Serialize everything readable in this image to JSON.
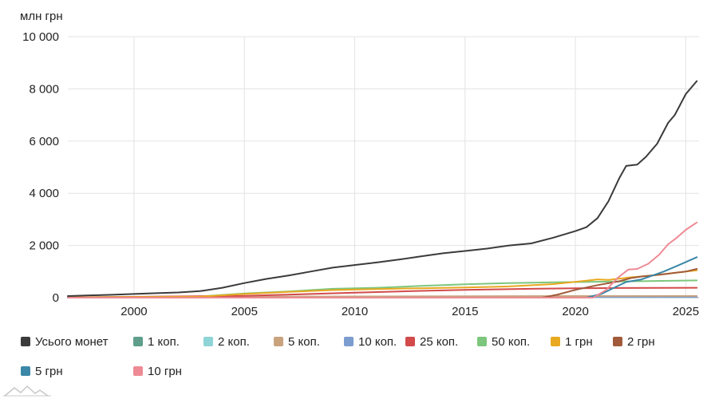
{
  "chart_data": {
    "type": "line",
    "unit_label": "млн грн",
    "xlim": [
      1997,
      2025.6
    ],
    "ylim": [
      0,
      10000
    ],
    "x_ticks": [
      2000,
      2005,
      2010,
      2015,
      2020,
      2025
    ],
    "y_ticks": [
      {
        "value": 0,
        "label": "0"
      },
      {
        "value": 2000,
        "label": "2 000"
      },
      {
        "value": 4000,
        "label": "4 000"
      },
      {
        "value": 6000,
        "label": "6 000"
      },
      {
        "value": 8000,
        "label": "8 000"
      },
      {
        "value": 10000,
        "label": "10 000"
      }
    ],
    "grid": true,
    "legend_position": "bottom",
    "series": [
      {
        "name": "Усього монет",
        "color": "#3b3b3b",
        "points": [
          [
            1997,
            60
          ],
          [
            1998,
            90
          ],
          [
            1999,
            110
          ],
          [
            2000,
            140
          ],
          [
            2001,
            170
          ],
          [
            2002,
            200
          ],
          [
            2003,
            250
          ],
          [
            2004,
            380
          ],
          [
            2005,
            560
          ],
          [
            2006,
            720
          ],
          [
            2007,
            850
          ],
          [
            2008,
            1000
          ],
          [
            2009,
            1150
          ],
          [
            2010,
            1250
          ],
          [
            2011,
            1350
          ],
          [
            2012,
            1460
          ],
          [
            2013,
            1580
          ],
          [
            2014,
            1700
          ],
          [
            2015,
            1790
          ],
          [
            2016,
            1880
          ],
          [
            2017,
            2000
          ],
          [
            2018,
            2080
          ],
          [
            2019,
            2300
          ],
          [
            2020,
            2550
          ],
          [
            2020.5,
            2700
          ],
          [
            2021,
            3050
          ],
          [
            2021.5,
            3700
          ],
          [
            2022,
            4600
          ],
          [
            2022.3,
            5050
          ],
          [
            2022.8,
            5100
          ],
          [
            2023.2,
            5400
          ],
          [
            2023.7,
            5900
          ],
          [
            2024.2,
            6700
          ],
          [
            2024.5,
            7000
          ],
          [
            2025,
            7800
          ],
          [
            2025.5,
            8300
          ]
        ]
      },
      {
        "name": "1 коп.",
        "color": "#5e9e8a",
        "points": [
          [
            1997,
            5
          ],
          [
            2005,
            15
          ],
          [
            2010,
            20
          ],
          [
            2015,
            25
          ],
          [
            2020,
            28
          ],
          [
            2025.5,
            28
          ]
        ]
      },
      {
        "name": "2 коп.",
        "color": "#8fd4d6",
        "points": [
          [
            1997,
            3
          ],
          [
            2005,
            10
          ],
          [
            2010,
            15
          ],
          [
            2015,
            18
          ],
          [
            2020,
            20
          ],
          [
            2025.5,
            20
          ]
        ]
      },
      {
        "name": "5 коп.",
        "color": "#c9a37e",
        "points": [
          [
            1997,
            8
          ],
          [
            2002,
            25
          ],
          [
            2005,
            35
          ],
          [
            2010,
            45
          ],
          [
            2015,
            55
          ],
          [
            2020,
            62
          ],
          [
            2025.5,
            65
          ]
        ]
      },
      {
        "name": "10 коп.",
        "color": "#7b9ccf",
        "points": [
          [
            1997,
            4
          ],
          [
            2005,
            12
          ],
          [
            2010,
            18
          ],
          [
            2015,
            22
          ],
          [
            2020,
            25
          ],
          [
            2025.5,
            25
          ]
        ]
      },
      {
        "name": "25 коп.",
        "color": "#d24a4a",
        "points": [
          [
            1997,
            10
          ],
          [
            2005,
            70
          ],
          [
            2008,
            140
          ],
          [
            2010,
            190
          ],
          [
            2013,
            260
          ],
          [
            2015,
            300
          ],
          [
            2018,
            340
          ],
          [
            2020,
            360
          ],
          [
            2022,
            370
          ],
          [
            2025.5,
            380
          ]
        ]
      },
      {
        "name": "50 коп.",
        "color": "#7dc67d",
        "points": [
          [
            1997,
            12
          ],
          [
            2003,
            50
          ],
          [
            2005,
            160
          ],
          [
            2007,
            240
          ],
          [
            2009,
            340
          ],
          [
            2011,
            380
          ],
          [
            2013,
            450
          ],
          [
            2015,
            510
          ],
          [
            2017,
            560
          ],
          [
            2019,
            590
          ],
          [
            2021,
            610
          ],
          [
            2023,
            630
          ],
          [
            2025.5,
            660
          ]
        ]
      },
      {
        "name": "1 грн",
        "color": "#e8a820",
        "points": [
          [
            1997,
            8
          ],
          [
            2003,
            40
          ],
          [
            2005,
            140
          ],
          [
            2007,
            220
          ],
          [
            2009,
            290
          ],
          [
            2011,
            330
          ],
          [
            2013,
            360
          ],
          [
            2015,
            390
          ],
          [
            2017,
            430
          ],
          [
            2019,
            520
          ],
          [
            2020.5,
            650
          ],
          [
            2021,
            700
          ],
          [
            2021.5,
            680
          ],
          [
            2022.5,
            780
          ],
          [
            2023.5,
            850
          ],
          [
            2024.5,
            950
          ],
          [
            2025.5,
            1050
          ]
        ]
      },
      {
        "name": "2 грн",
        "color": "#a15a3a",
        "points": [
          [
            1997,
            0
          ],
          [
            2018.5,
            0
          ],
          [
            2019.2,
            120
          ],
          [
            2020,
            300
          ],
          [
            2021,
            480
          ],
          [
            2022,
            630
          ],
          [
            2022.5,
            750
          ],
          [
            2023,
            810
          ],
          [
            2024,
            900
          ],
          [
            2025,
            1000
          ],
          [
            2025.5,
            1100
          ]
        ]
      },
      {
        "name": "5 грн",
        "color": "#3a87a8",
        "points": [
          [
            1997,
            0
          ],
          [
            2020.5,
            0
          ],
          [
            2021.2,
            150
          ],
          [
            2021.8,
            400
          ],
          [
            2022.3,
            600
          ],
          [
            2023,
            700
          ],
          [
            2024,
            1000
          ],
          [
            2024.7,
            1250
          ],
          [
            2025.5,
            1550
          ]
        ]
      },
      {
        "name": "10 грн",
        "color": "#ee8a95",
        "points": [
          [
            1997,
            0
          ],
          [
            2020.8,
            0
          ],
          [
            2021.4,
            300
          ],
          [
            2021.9,
            750
          ],
          [
            2022.4,
            1080
          ],
          [
            2022.8,
            1100
          ],
          [
            2023.3,
            1300
          ],
          [
            2023.8,
            1650
          ],
          [
            2024.2,
            2050
          ],
          [
            2024.6,
            2300
          ],
          [
            2025,
            2600
          ],
          [
            2025.5,
            2880
          ]
        ]
      }
    ]
  }
}
